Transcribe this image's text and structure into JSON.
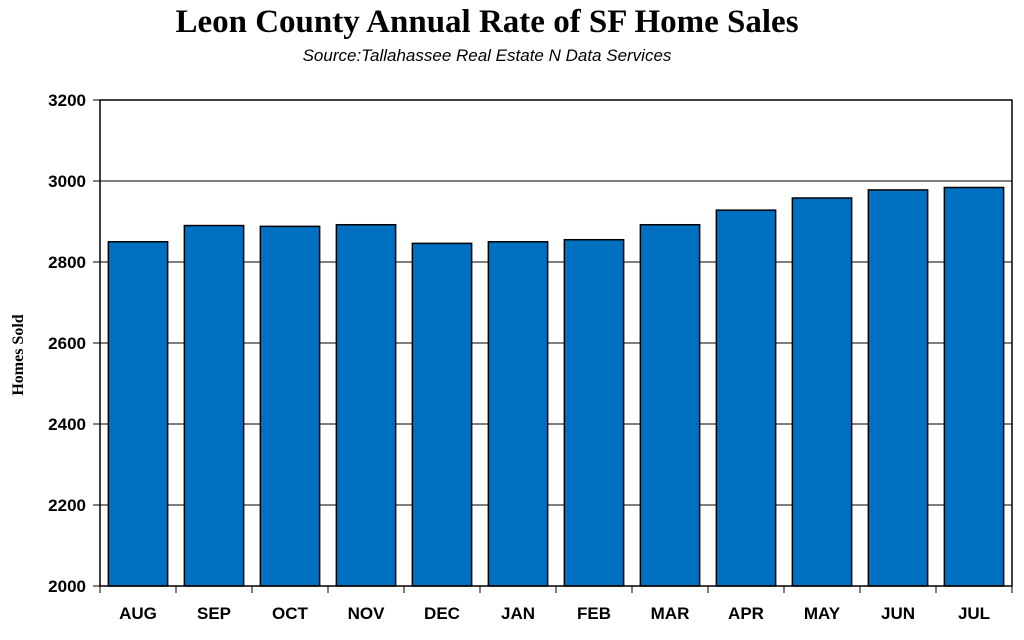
{
  "chart_data": {
    "type": "bar",
    "title": "Leon County Annual Rate of SF Home Sales",
    "subtitle": "Source:Tallahassee Real Estate N Data Services",
    "xlabel": "",
    "ylabel": "Homes Sold",
    "ylim": [
      2000,
      3200
    ],
    "yticks": [
      "3200",
      "3000",
      "2800",
      "2600",
      "2400",
      "2200",
      "2000"
    ],
    "categories": [
      "AUG",
      "SEP",
      "OCT",
      "NOV",
      "DEC",
      "JAN",
      "FEB",
      "MAR",
      "APR",
      "MAY",
      "JUN",
      "JUL"
    ],
    "values": [
      2850,
      2890,
      2888,
      2892,
      2846,
      2850,
      2855,
      2892,
      2928,
      2958,
      2978,
      2984
    ],
    "grid": true,
    "bar_color": "#0070C0"
  }
}
